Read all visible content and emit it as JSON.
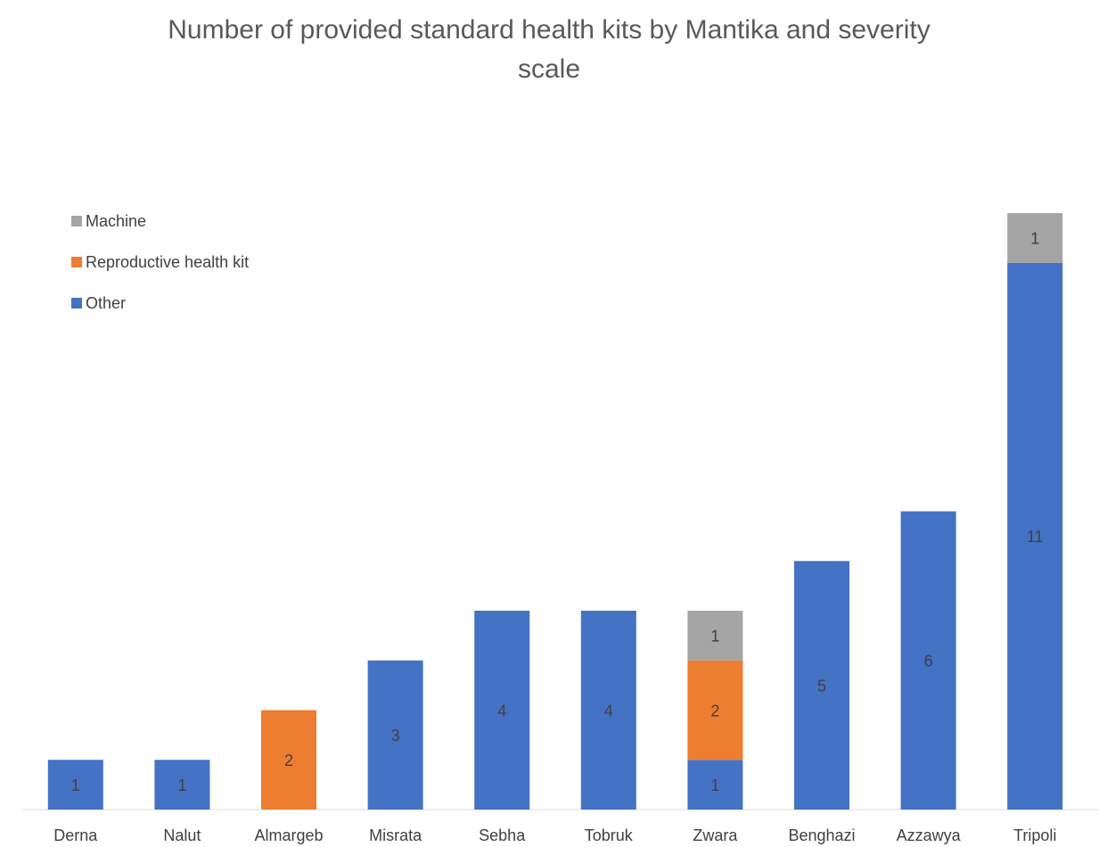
{
  "chart_data": {
    "type": "stacked_bar",
    "title": "Number of provided standard health kits by Mantika and severity scale",
    "categories": [
      "Derna",
      "Nalut",
      "Almargeb",
      "Misrata",
      "Sebha",
      "Tobruk",
      "Zwara",
      "Benghazi",
      "Azzawya",
      "Tripoli"
    ],
    "series": [
      {
        "name": "Other",
        "color": "#4472c4",
        "values": [
          1,
          1,
          null,
          3,
          4,
          4,
          1,
          5,
          6,
          11
        ]
      },
      {
        "name": "Reproductive health kit",
        "color": "#ed7d31",
        "values": [
          null,
          null,
          2,
          null,
          null,
          null,
          2,
          null,
          null,
          null
        ]
      },
      {
        "name": "Machine",
        "color": "#a5a5a5",
        "values": [
          null,
          null,
          null,
          null,
          null,
          null,
          1,
          null,
          null,
          1
        ]
      }
    ],
    "legend": "top-left"
  }
}
